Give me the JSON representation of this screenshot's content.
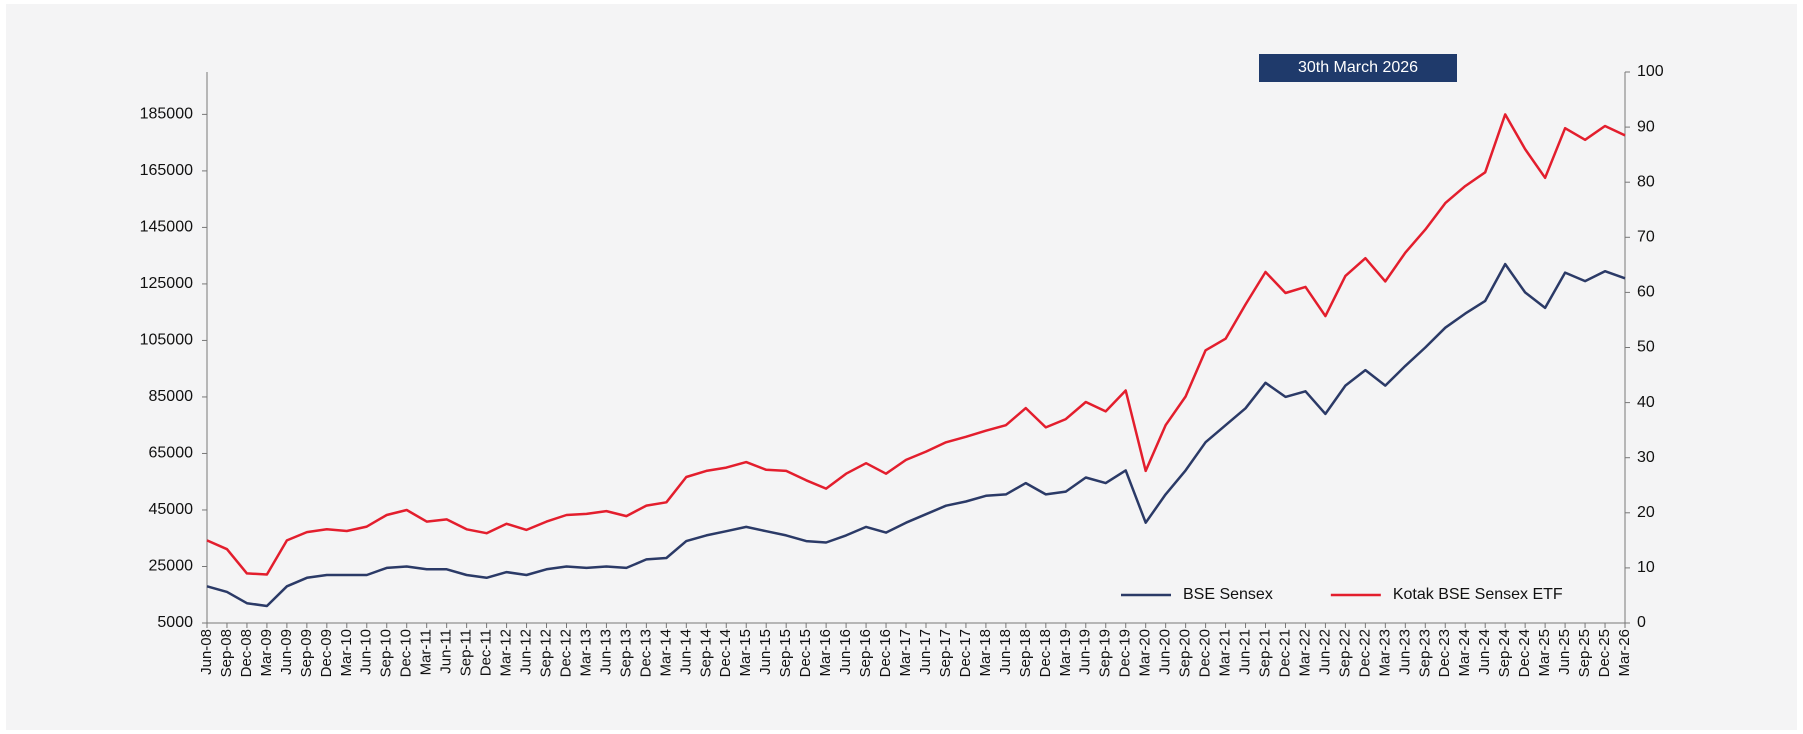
{
  "chart_data": {
    "type": "line",
    "annotation": "30th March 2026",
    "categories": [
      "Jun-08",
      "Sep-08",
      "Dec-08",
      "Mar-09",
      "Jun-09",
      "Sep-09",
      "Dec-09",
      "Mar-10",
      "Jun-10",
      "Sep-10",
      "Dec-10",
      "Mar-11",
      "Jun-11",
      "Sep-11",
      "Dec-11",
      "Mar-12",
      "Jun-12",
      "Sep-12",
      "Dec-12",
      "Mar-13",
      "Jun-13",
      "Sep-13",
      "Dec-13",
      "Mar-14",
      "Jun-14",
      "Sep-14",
      "Dec-14",
      "Mar-15",
      "Jun-15",
      "Sep-15",
      "Dec-15",
      "Mar-16",
      "Jun-16",
      "Sep-16",
      "Dec-16",
      "Mar-17",
      "Jun-17",
      "Sep-17",
      "Dec-17",
      "Mar-18",
      "Jun-18",
      "Sep-18",
      "Dec-18",
      "Mar-19",
      "Jun-19",
      "Sep-19",
      "Dec-19",
      "Mar-20",
      "Jun-20",
      "Sep-20",
      "Dec-20",
      "Mar-21",
      "Jun-21",
      "Sep-21",
      "Dec-21",
      "Mar-22",
      "Jun-22",
      "Sep-22",
      "Dec-22",
      "Mar-23",
      "Jun-23",
      "Sep-23",
      "Dec-23",
      "Mar-24",
      "Jun-24",
      "Sep-24",
      "Dec-24",
      "Mar-25",
      "Jun-25",
      "Sep-25",
      "Dec-25",
      "Mar-26"
    ],
    "series": [
      {
        "name": "BSE Sensex",
        "color": "#2b3a67",
        "axis": "y",
        "values": [
          18000,
          16000,
          12000,
          11000,
          18000,
          21000,
          22000,
          22000,
          22000,
          24500,
          25000,
          24000,
          24000,
          22000,
          21000,
          23000,
          22000,
          24000,
          25000,
          24500,
          25000,
          24500,
          27500,
          28000,
          34000,
          36000,
          37500,
          39000,
          37500,
          36000,
          34000,
          33500,
          36000,
          39000,
          37000,
          40500,
          43500,
          46500,
          48000,
          50000,
          50500,
          54500,
          50500,
          51500,
          56500,
          54500,
          59000,
          40500,
          50500,
          59000,
          69000,
          75000,
          81000,
          90000,
          85000,
          87000,
          79000,
          89000,
          94500,
          89000,
          96000,
          102500,
          109500,
          114500,
          119000,
          132000,
          122000,
          116500,
          129000,
          126000,
          129500,
          127000
        ]
      },
      {
        "name": "Kotak BSE Sensex ETF",
        "color": "#e31e2d",
        "axis": "y2",
        "values": [
          15,
          13.4,
          9,
          8.8,
          15,
          16.5,
          17,
          16.7,
          17.5,
          19.6,
          20.5,
          18.4,
          18.8,
          17,
          16.3,
          18,
          16.9,
          18.4,
          19.6,
          19.8,
          20.3,
          19.4,
          21.3,
          21.9,
          26.5,
          27.6,
          28.2,
          29.2,
          27.8,
          27.6,
          25.9,
          24.4,
          27.1,
          29,
          27.1,
          29.6,
          31.1,
          32.8,
          33.8,
          34.9,
          35.9,
          39,
          35.5,
          37,
          40.1,
          38.4,
          42.2,
          27.6,
          35.9,
          41.1,
          49.5,
          51.6,
          57.8,
          63.7,
          59.9,
          61,
          55.7,
          63,
          66.2,
          62,
          67.2,
          71.4,
          76.2,
          79.3,
          81.8,
          92.3,
          86,
          80.8,
          89.8,
          87.7,
          90.2,
          88.5
        ]
      }
    ],
    "ylim": [
      5000,
      200000
    ],
    "yticks": [
      5000,
      25000,
      45000,
      65000,
      85000,
      105000,
      125000,
      145000,
      165000,
      185000
    ],
    "y2lim": [
      0,
      100
    ],
    "y2ticks": [
      0,
      10,
      20,
      30,
      40,
      50,
      60,
      70,
      80,
      90,
      100
    ],
    "legend": "lower right"
  }
}
